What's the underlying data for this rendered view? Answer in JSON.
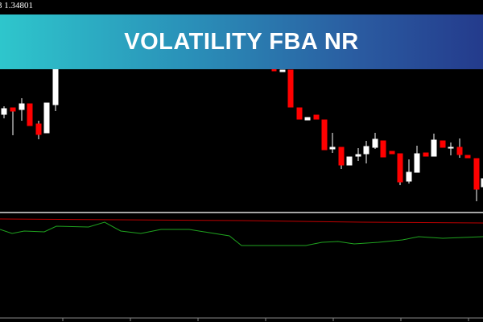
{
  "price_label": "3 1.34801",
  "banner": {
    "title": "VOLATILITY FBA NR"
  }
}
